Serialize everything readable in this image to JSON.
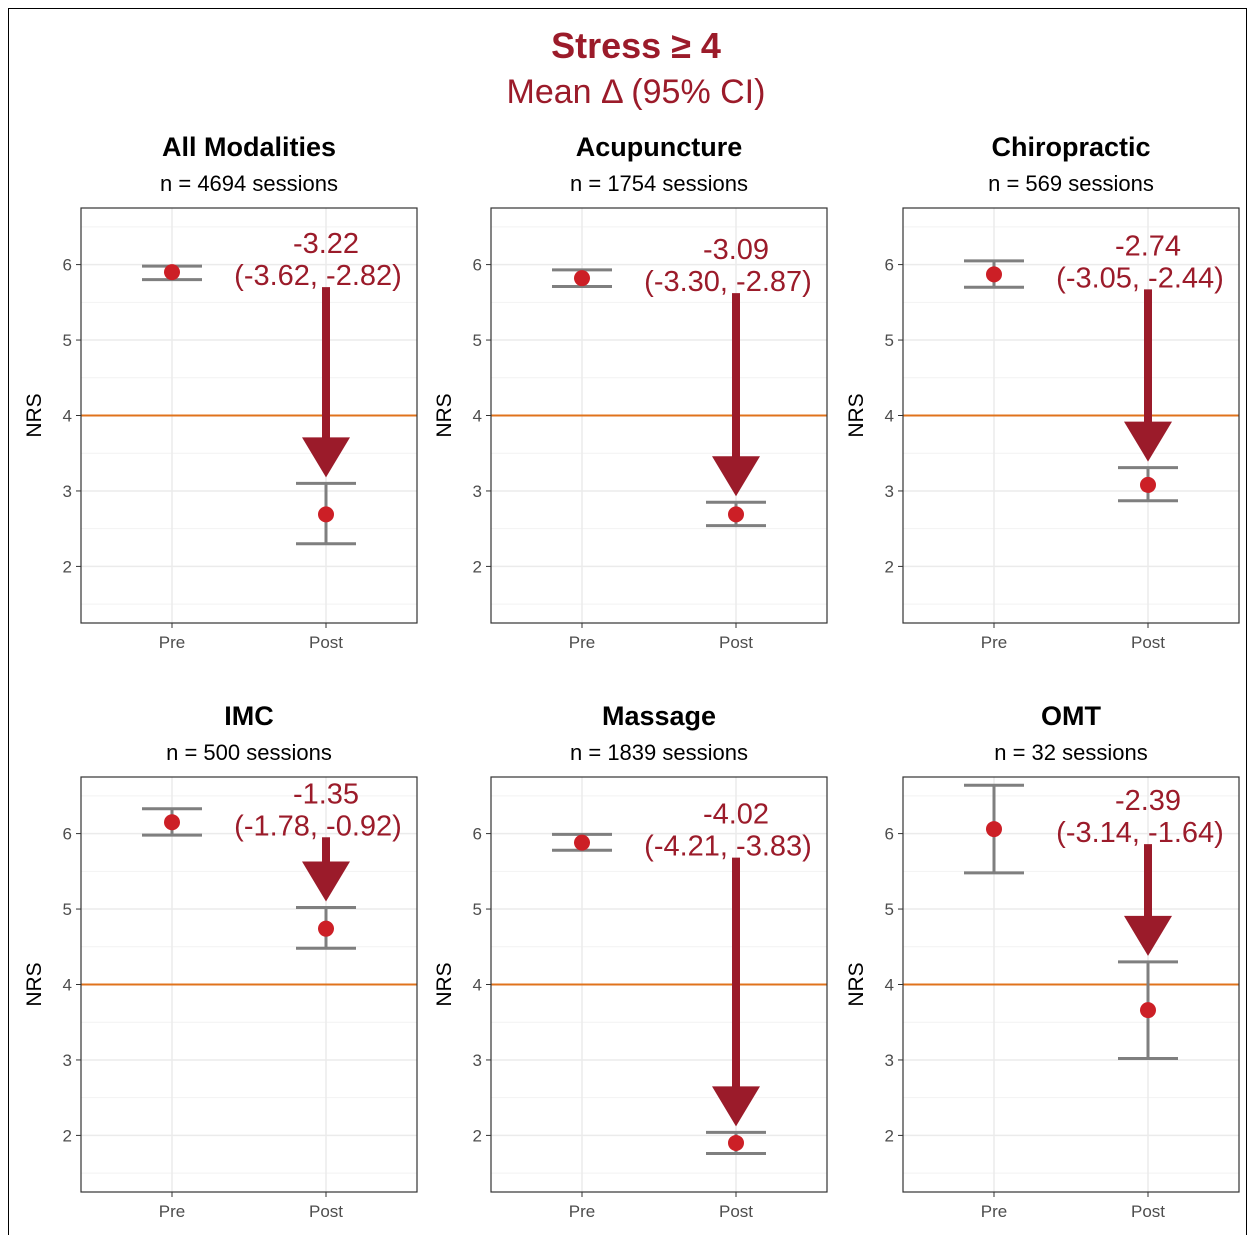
{
  "title": "Stress ≥ 4",
  "subtitle": "Mean Δ (95% CI)",
  "colors": {
    "accent": "#9b1b2a",
    "point": "#cc1f26",
    "errorbar": "#7f7f7f",
    "threshold": "#e0731c",
    "grid": "#ebebeb"
  },
  "chart_data": [
    {
      "type": "scatter",
      "title": "All Modalities",
      "subtitle": "n = 4694 sessions",
      "categories": [
        "Pre",
        "Post"
      ],
      "ylabel": "NRS",
      "ylim": [
        1.25,
        6.75
      ],
      "yticks": [
        2,
        3,
        4,
        5,
        6
      ],
      "threshold": 4,
      "points": [
        {
          "x": "Pre",
          "mean": 5.9,
          "lower": 5.8,
          "upper": 5.98
        },
        {
          "x": "Post",
          "mean": 2.69,
          "lower": 2.3,
          "upper": 3.1
        }
      ],
      "change": {
        "value": "-3.22",
        "ci": "(-3.62, -2.82)"
      }
    },
    {
      "type": "scatter",
      "title": "Acupuncture",
      "subtitle": "n = 1754 sessions",
      "categories": [
        "Pre",
        "Post"
      ],
      "ylabel": "NRS",
      "ylim": [
        1.25,
        6.75
      ],
      "yticks": [
        2,
        3,
        4,
        5,
        6
      ],
      "threshold": 4,
      "points": [
        {
          "x": "Pre",
          "mean": 5.82,
          "lower": 5.71,
          "upper": 5.93
        },
        {
          "x": "Post",
          "mean": 2.69,
          "lower": 2.54,
          "upper": 2.85
        }
      ],
      "change": {
        "value": "-3.09",
        "ci": "(-3.30, -2.87)"
      }
    },
    {
      "type": "scatter",
      "title": "Chiropractic",
      "subtitle": "n = 569 sessions",
      "categories": [
        "Pre",
        "Post"
      ],
      "ylabel": "NRS",
      "ylim": [
        1.25,
        6.75
      ],
      "yticks": [
        2,
        3,
        4,
        5,
        6
      ],
      "threshold": 4,
      "points": [
        {
          "x": "Pre",
          "mean": 5.87,
          "lower": 5.7,
          "upper": 6.05
        },
        {
          "x": "Post",
          "mean": 3.08,
          "lower": 2.87,
          "upper": 3.31
        }
      ],
      "change": {
        "value": "-2.74",
        "ci": "(-3.05, -2.44)"
      }
    },
    {
      "type": "scatter",
      "title": "IMC",
      "subtitle": "n = 500 sessions",
      "categories": [
        "Pre",
        "Post"
      ],
      "ylabel": "NRS",
      "ylim": [
        1.25,
        6.75
      ],
      "yticks": [
        2,
        3,
        4,
        5,
        6
      ],
      "threshold": 4,
      "points": [
        {
          "x": "Pre",
          "mean": 6.15,
          "lower": 5.98,
          "upper": 6.33
        },
        {
          "x": "Post",
          "mean": 4.74,
          "lower": 4.48,
          "upper": 5.02
        }
      ],
      "change": {
        "value": "-1.35",
        "ci": "(-1.78, -0.92)"
      }
    },
    {
      "type": "scatter",
      "title": "Massage",
      "subtitle": "n = 1839 sessions",
      "categories": [
        "Pre",
        "Post"
      ],
      "ylabel": "NRS",
      "ylim": [
        1.25,
        6.75
      ],
      "yticks": [
        2,
        3,
        4,
        5,
        6
      ],
      "threshold": 4,
      "points": [
        {
          "x": "Pre",
          "mean": 5.88,
          "lower": 5.78,
          "upper": 5.99
        },
        {
          "x": "Post",
          "mean": 1.9,
          "lower": 1.76,
          "upper": 2.04
        }
      ],
      "change": {
        "value": "-4.02",
        "ci": "(-4.21, -3.83)"
      }
    },
    {
      "type": "scatter",
      "title": "OMT",
      "subtitle": "n = 32 sessions",
      "categories": [
        "Pre",
        "Post"
      ],
      "ylabel": "NRS",
      "ylim": [
        1.25,
        6.75
      ],
      "yticks": [
        2,
        3,
        4,
        5,
        6
      ],
      "threshold": 4,
      "points": [
        {
          "x": "Pre",
          "mean": 6.06,
          "lower": 5.48,
          "upper": 6.64
        },
        {
          "x": "Post",
          "mean": 3.66,
          "lower": 3.02,
          "upper": 4.3
        }
      ],
      "change": {
        "value": "-2.39",
        "ci": "(-3.14, -1.64)"
      }
    }
  ]
}
